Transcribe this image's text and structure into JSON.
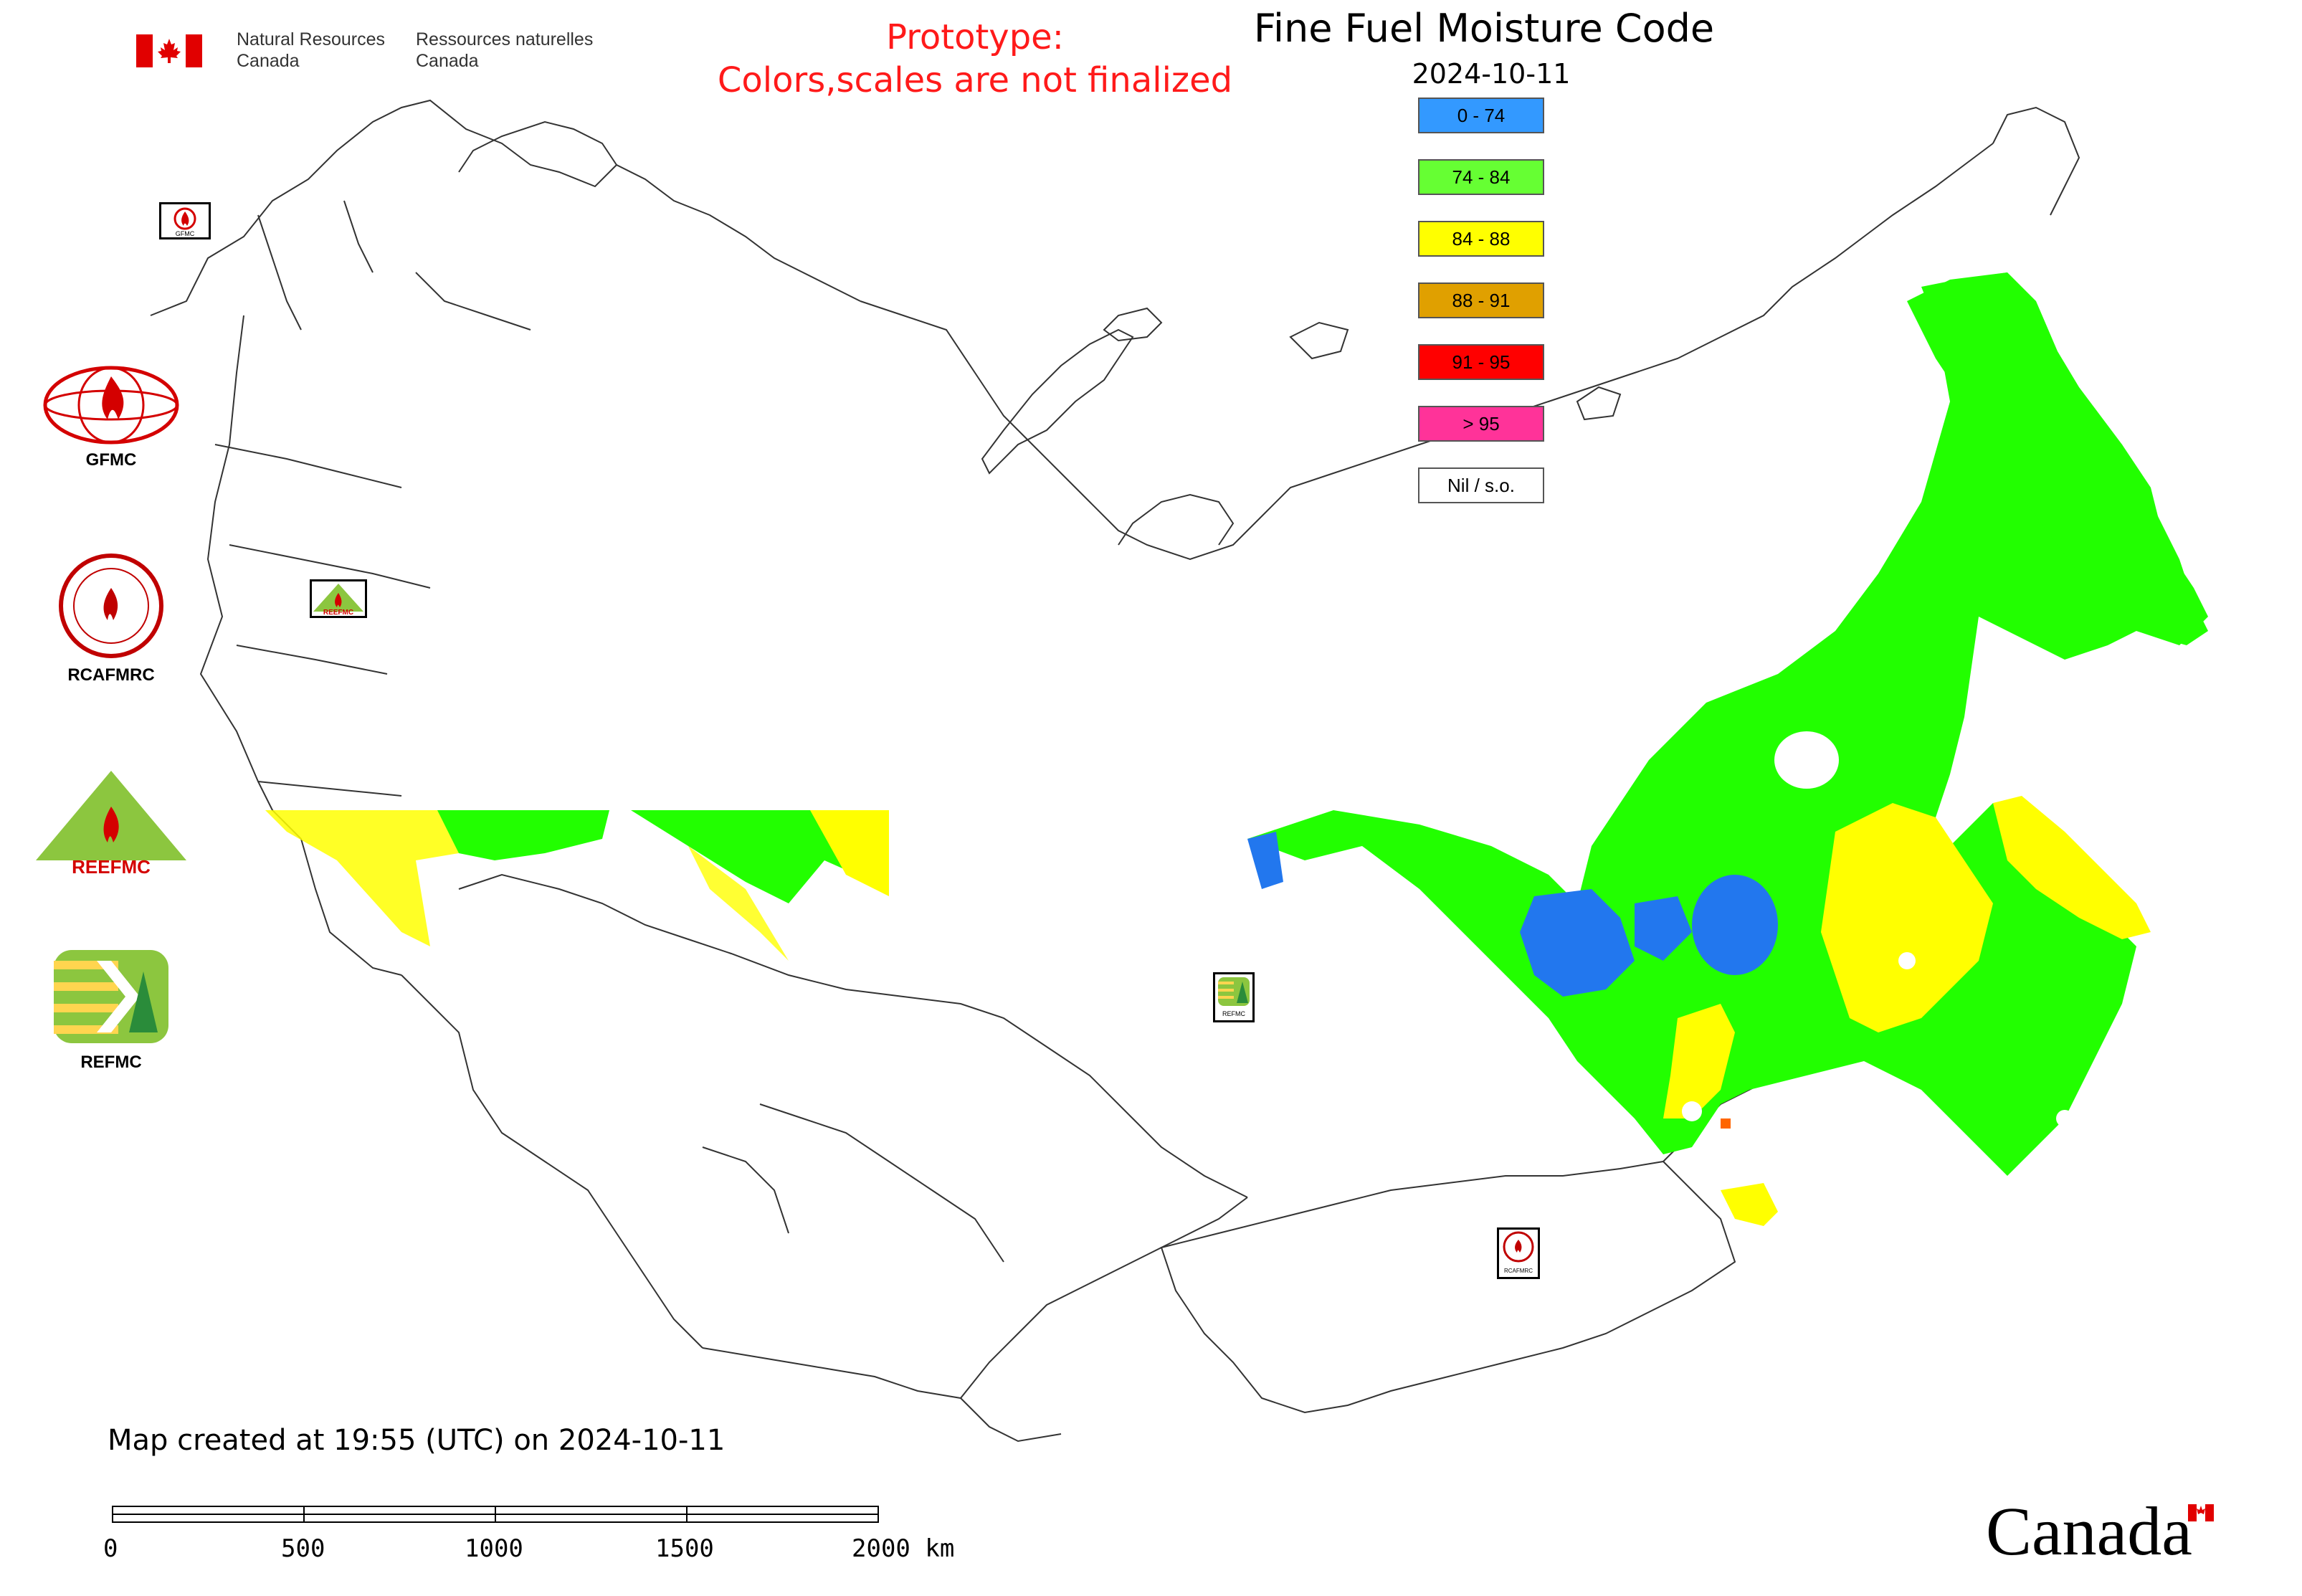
{
  "government_signature": {
    "english_line1": "Natural Resources",
    "english_line2": "Canada",
    "french_line1": "Ressources naturelles",
    "french_line2": "Canada"
  },
  "prototype_notice": {
    "line1": "Prototype:",
    "line2": "Colors,scales are not finalized",
    "color": "#ff1a1a"
  },
  "map": {
    "title": "Fine Fuel Moisture Code",
    "date": "2024-10-11"
  },
  "legend": [
    {
      "label": "0 - 74",
      "color": "#3399ff"
    },
    {
      "label": "74 - 84",
      "color": "#66ff33"
    },
    {
      "label": "84 - 88",
      "color": "#ffff00"
    },
    {
      "label": "88 - 91",
      "color": "#e0a000"
    },
    {
      "label": "91 - 95",
      "color": "#ff0000"
    },
    {
      "label": "> 95",
      "color": "#ff3399"
    },
    {
      "label": "Nil / s.o.",
      "color": "#ffffff"
    }
  ],
  "side_logos": [
    {
      "label": "GFMC",
      "icon": "gfmc-globe-flame-icon"
    },
    {
      "label": "RCAFMRC",
      "icon": "rcafmrc-seal-icon"
    },
    {
      "label": "",
      "icon": "reefmc-triangle-icon",
      "logo_text": "REEFMC"
    },
    {
      "label": "REFMC",
      "icon": "refmc-sigma-icon"
    }
  ],
  "map_markers": [
    {
      "name": "gfmc-marker",
      "logo_text": "GFMC"
    },
    {
      "name": "reefmc-marker",
      "logo_text": "REEFMC"
    },
    {
      "name": "refmc-marker",
      "logo_text": "REFMC"
    },
    {
      "name": "rcafmrc-marker",
      "logo_text": "RCAFMRC"
    }
  ],
  "footer": {
    "created_text": "Map created at 19:55 (UTC) on 2024-10-11"
  },
  "scale_bar": {
    "labels": [
      "0",
      "500",
      "1000",
      "1500",
      "2000 km"
    ]
  },
  "wordmark": {
    "text": "Canada"
  },
  "colors": {
    "border_lines": "#333333",
    "moisture_green": "#22ff00",
    "moisture_blue": "#2277ee",
    "moisture_yellow": "#ffff00"
  }
}
